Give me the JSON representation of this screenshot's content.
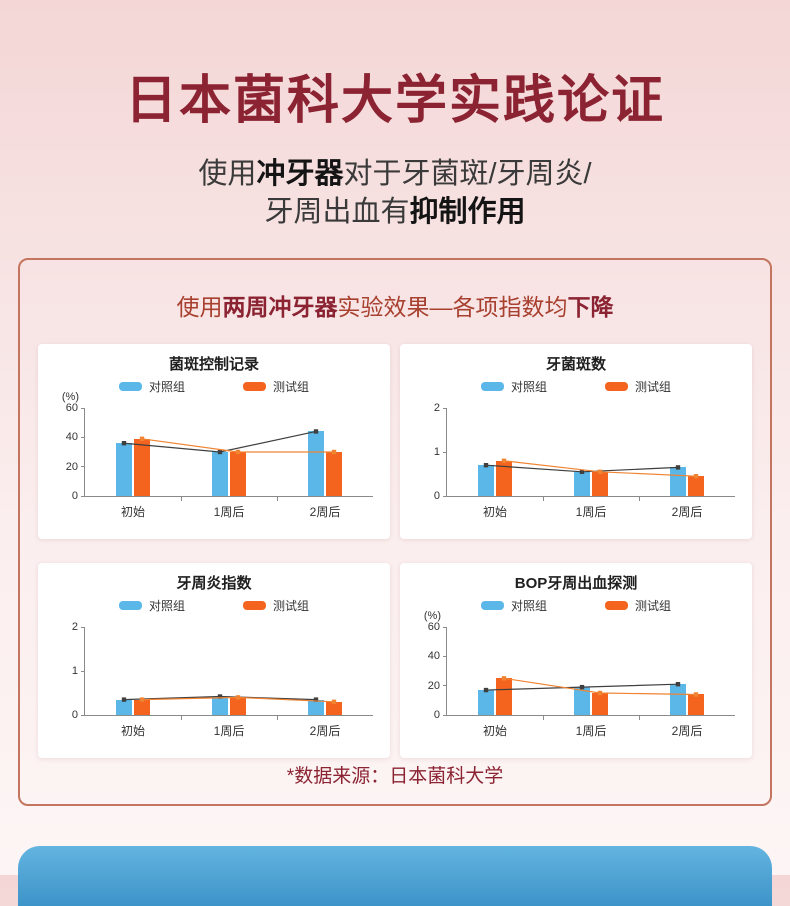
{
  "page": {
    "title": "日本菌科大学实践论证",
    "subtitle": {
      "l1a": "使用",
      "l1b": "冲牙器",
      "l1c": "对于牙菌斑/牙周炎/",
      "l2a": "牙周出血有",
      "l2b": "抑制作用"
    },
    "panel_header": {
      "p1": "使用",
      "p2": "两周冲牙器",
      "p3": "实验效果—各项指数均",
      "p4": "下降"
    },
    "source": "*数据来源：日本菌科大学"
  },
  "colors": {
    "accent": "#8b2332",
    "panel_border": "#c4755f",
    "control": "#5ab7e8",
    "test": "#f4641e",
    "control_line": "#3f3f3f",
    "test_line": "#f08433",
    "bottom_blue": "#4da5d6"
  },
  "chart_data": [
    {
      "type": "bar",
      "title": "菌斑控制记录",
      "unit": "(%)",
      "ylim": [
        0,
        60
      ],
      "yticks": [
        0,
        20,
        40,
        60
      ],
      "categories": [
        "初始",
        "1周后",
        "2周后"
      ],
      "series": [
        {
          "name": "对照组",
          "values": [
            36,
            30,
            44
          ]
        },
        {
          "name": "测试组",
          "values": [
            39,
            30,
            30
          ]
        }
      ],
      "legend_position": "top",
      "grid": false
    },
    {
      "type": "bar",
      "title": "牙菌斑数",
      "unit": "",
      "ylim": [
        0,
        2
      ],
      "yticks": [
        0,
        1,
        2
      ],
      "categories": [
        "初始",
        "1周后",
        "2周后"
      ],
      "series": [
        {
          "name": "对照组",
          "values": [
            0.7,
            0.55,
            0.65
          ]
        },
        {
          "name": "测试组",
          "values": [
            0.8,
            0.55,
            0.45
          ]
        }
      ],
      "legend_position": "top",
      "grid": false
    },
    {
      "type": "bar",
      "title": "牙周炎指数",
      "unit": "",
      "ylim": [
        0,
        2
      ],
      "yticks": [
        0,
        1,
        2
      ],
      "categories": [
        "初始",
        "1周后",
        "2周后"
      ],
      "series": [
        {
          "name": "对照组",
          "values": [
            0.35,
            0.42,
            0.35
          ]
        },
        {
          "name": "测试组",
          "values": [
            0.35,
            0.4,
            0.3
          ]
        }
      ],
      "legend_position": "top",
      "grid": false
    },
    {
      "type": "bar",
      "title": "BOP牙周出血探测",
      "unit": "(%)",
      "ylim": [
        0,
        60
      ],
      "yticks": [
        0,
        20,
        40,
        60
      ],
      "categories": [
        "初始",
        "1周后",
        "2周后"
      ],
      "series": [
        {
          "name": "对照组",
          "values": [
            17,
            19,
            21
          ]
        },
        {
          "name": "测试组",
          "values": [
            25,
            15,
            14
          ]
        }
      ],
      "legend_position": "top",
      "grid": false
    }
  ]
}
